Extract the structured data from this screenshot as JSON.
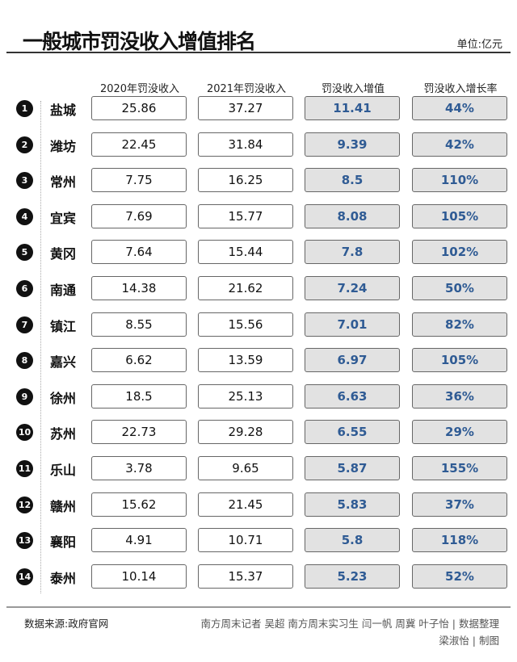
{
  "title": "一般城市罚没收入增值排名",
  "unit": "单位:亿元",
  "headers": [
    "2020年罚没收入",
    "2021年罚没收入",
    "罚没收入增值",
    "罚没收入增长率"
  ],
  "rows": [
    {
      "rank": "1",
      "city": "盐城",
      "y2020": "25.86",
      "y2021": "37.27",
      "increase": "11.41",
      "rate": "44%"
    },
    {
      "rank": "2",
      "city": "潍坊",
      "y2020": "22.45",
      "y2021": "31.84",
      "increase": "9.39",
      "rate": "42%"
    },
    {
      "rank": "3",
      "city": "常州",
      "y2020": "7.75",
      "y2021": "16.25",
      "increase": "8.5",
      "rate": "110%"
    },
    {
      "rank": "4",
      "city": "宜宾",
      "y2020": "7.69",
      "y2021": "15.77",
      "increase": "8.08",
      "rate": "105%"
    },
    {
      "rank": "5",
      "city": "黄冈",
      "y2020": "7.64",
      "y2021": "15.44",
      "increase": "7.8",
      "rate": "102%"
    },
    {
      "rank": "6",
      "city": "南通",
      "y2020": "14.38",
      "y2021": "21.62",
      "increase": "7.24",
      "rate": "50%"
    },
    {
      "rank": "7",
      "city": "镇江",
      "y2020": "8.55",
      "y2021": "15.56",
      "increase": "7.01",
      "rate": "82%"
    },
    {
      "rank": "8",
      "city": "嘉兴",
      "y2020": "6.62",
      "y2021": "13.59",
      "increase": "6.97",
      "rate": "105%"
    },
    {
      "rank": "9",
      "city": "徐州",
      "y2020": "18.5",
      "y2021": "25.13",
      "increase": "6.63",
      "rate": "36%"
    },
    {
      "rank": "10",
      "city": "苏州",
      "y2020": "22.73",
      "y2021": "29.28",
      "increase": "6.55",
      "rate": "29%"
    },
    {
      "rank": "11",
      "city": "乐山",
      "y2020": "3.78",
      "y2021": "9.65",
      "increase": "5.87",
      "rate": "155%"
    },
    {
      "rank": "12",
      "city": "赣州",
      "y2020": "15.62",
      "y2021": "21.45",
      "increase": "5.83",
      "rate": "37%"
    },
    {
      "rank": "13",
      "city": "襄阳",
      "y2020": "4.91",
      "y2021": "10.71",
      "increase": "5.8",
      "rate": "118%"
    },
    {
      "rank": "14",
      "city": "泰州",
      "y2020": "10.14",
      "y2021": "15.37",
      "increase": "5.23",
      "rate": "52%"
    }
  ],
  "footer": {
    "source": "数据来源:政府官网",
    "credit_line1": "南方周末记者 吴超 南方周末实习生 闫一帆 周冀 叶子怡 | 数据整理",
    "credit_line2": "梁淑怡 | 制图"
  },
  "colors": {
    "value_text": "#2f5b94",
    "highlight_fill": "#e2e2e2"
  }
}
